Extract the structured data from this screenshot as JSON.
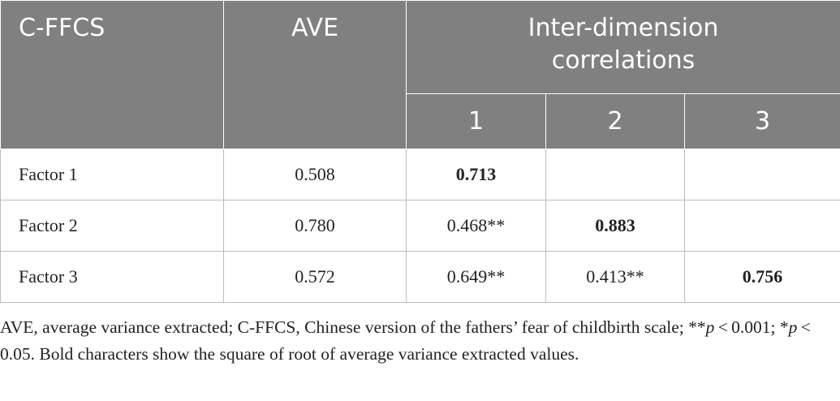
{
  "table": {
    "header": {
      "col0": "C-FFCS",
      "col1": "AVE",
      "group": "Inter-dimension correlations",
      "sub": [
        "1",
        "2",
        "3"
      ]
    },
    "rows": [
      {
        "cells": [
          {
            "text": "Factor 1"
          },
          {
            "text": "0.508"
          },
          {
            "text": "0.713",
            "bold": true
          },
          {
            "text": ""
          },
          {
            "text": ""
          }
        ]
      },
      {
        "cells": [
          {
            "text": "Factor 2"
          },
          {
            "text": "0.780"
          },
          {
            "text": "0.468**"
          },
          {
            "text": "0.883",
            "bold": true
          },
          {
            "text": ""
          }
        ]
      },
      {
        "cells": [
          {
            "text": "Factor 3"
          },
          {
            "text": "0.572"
          },
          {
            "text": "0.649**"
          },
          {
            "text": "0.413**"
          },
          {
            "text": "0.756",
            "bold": true
          }
        ]
      }
    ]
  },
  "footnote": [
    "AVE, average variance extracted; C-FFCS, Chinese version of the fathers’ fear of childbirth scale; **",
    "p",
    " < 0.001; *",
    "p",
    " < 0.05. Bold characters show the square of root of average variance extracted values."
  ]
}
